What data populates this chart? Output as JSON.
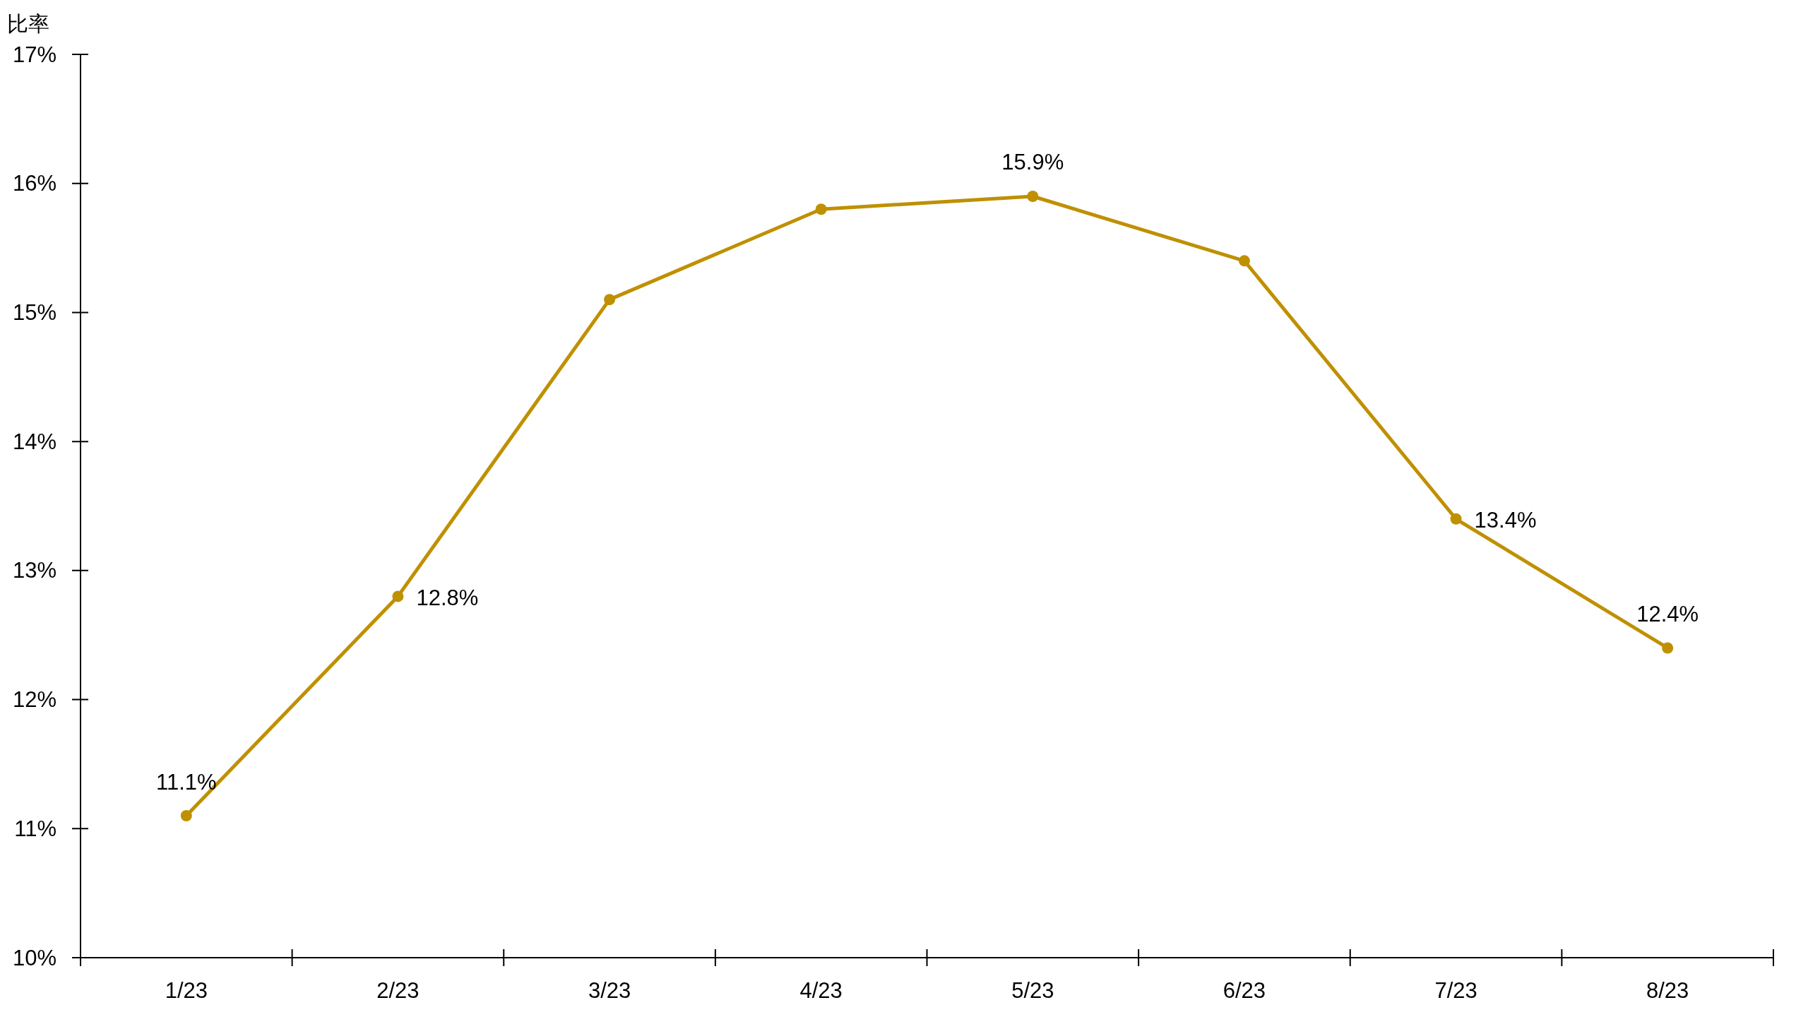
{
  "chart_data": {
    "type": "line",
    "ylabel": "比率",
    "categories": [
      "1/23",
      "2/23",
      "3/23",
      "4/23",
      "5/23",
      "6/23",
      "7/23",
      "8/23"
    ],
    "series": [
      {
        "color": "#bf9000",
        "values": [
          11.1,
          12.8,
          15.1,
          15.8,
          15.9,
          15.4,
          13.4,
          12.4
        ],
        "value_labels": [
          "11.1%",
          "12.8%",
          null,
          null,
          "15.9%",
          null,
          "13.4%",
          "12.4%"
        ]
      }
    ],
    "ylim": [
      10,
      17
    ],
    "yticks": [
      {
        "value": 10,
        "label": "10%"
      },
      {
        "value": 11,
        "label": "11%"
      },
      {
        "value": 12,
        "label": "12%"
      },
      {
        "value": 13,
        "label": "13%"
      },
      {
        "value": 14,
        "label": "14%"
      },
      {
        "value": 15,
        "label": "15%"
      },
      {
        "value": 16,
        "label": "16%"
      },
      {
        "value": 17,
        "label": "17%"
      }
    ],
    "marker": "circle",
    "line_style": "solid"
  }
}
